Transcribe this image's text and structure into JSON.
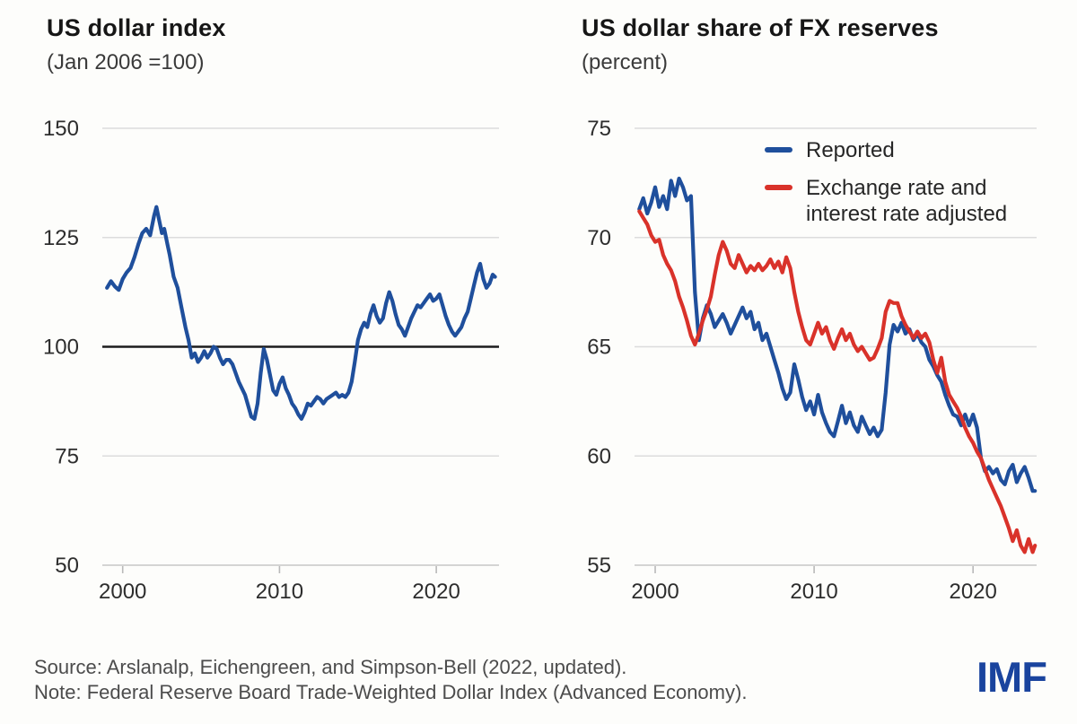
{
  "figure": {
    "source_line": "Source: Arslanalp, Eichengreen, and Simpson-Bell (2022, updated).",
    "note_line": "Note: Federal Reserve Board Trade-Weighted Dollar Index (Advanced Economy).",
    "logo_text": "IMF",
    "logo_color": "#1a449e",
    "background_color": "#fdfdfb",
    "grid_color": "#dcdcdc",
    "axis_color": "#c6c6c6",
    "reference_line_color": "#1c1c1c"
  },
  "chart_data": [
    {
      "type": "line",
      "title": "US dollar index",
      "subtitle": "(Jan 2006 =100)",
      "xlim": [
        1998.7,
        2024.0
      ],
      "ylim": [
        50,
        150
      ],
      "x_ticks": [
        2000,
        2010,
        2020
      ],
      "y_ticks": [
        150,
        125,
        100,
        75,
        50
      ],
      "reference_line": 100,
      "grid": "horizontal",
      "legend_position": "none",
      "series": [
        {
          "name": "US dollar index",
          "color": "#1f4f9c",
          "x": [
            1999.0,
            1999.25,
            1999.5,
            1999.75,
            2000.0,
            2000.25,
            2000.5,
            2000.75,
            2001.0,
            2001.25,
            2001.5,
            2001.75,
            2002.0,
            2002.15,
            2002.35,
            2002.5,
            2002.65,
            2002.85,
            2003.0,
            2003.25,
            2003.5,
            2003.75,
            2004.0,
            2004.2,
            2004.4,
            2004.6,
            2004.8,
            2005.0,
            2005.2,
            2005.4,
            2005.6,
            2005.8,
            2006.0,
            2006.2,
            2006.4,
            2006.6,
            2006.8,
            2007.0,
            2007.2,
            2007.4,
            2007.6,
            2007.8,
            2008.0,
            2008.2,
            2008.4,
            2008.6,
            2008.8,
            2009.0,
            2009.2,
            2009.4,
            2009.6,
            2009.8,
            2010.0,
            2010.2,
            2010.4,
            2010.6,
            2010.8,
            2011.0,
            2011.2,
            2011.4,
            2011.6,
            2011.8,
            2012.0,
            2012.2,
            2012.4,
            2012.6,
            2012.8,
            2013.0,
            2013.2,
            2013.4,
            2013.6,
            2013.8,
            2014.0,
            2014.2,
            2014.4,
            2014.6,
            2014.8,
            2015.0,
            2015.2,
            2015.4,
            2015.6,
            2015.8,
            2016.0,
            2016.2,
            2016.4,
            2016.6,
            2016.8,
            2017.0,
            2017.2,
            2017.4,
            2017.6,
            2017.8,
            2018.0,
            2018.2,
            2018.4,
            2018.6,
            2018.8,
            2019.0,
            2019.2,
            2019.4,
            2019.6,
            2019.8,
            2020.0,
            2020.2,
            2020.4,
            2020.6,
            2020.8,
            2021.0,
            2021.2,
            2021.4,
            2021.6,
            2021.8,
            2022.0,
            2022.2,
            2022.4,
            2022.6,
            2022.8,
            2023.0,
            2023.2,
            2023.4,
            2023.6,
            2023.75
          ],
          "y": [
            113.5,
            115.0,
            113.8,
            113.0,
            115.5,
            117.0,
            118.0,
            120.5,
            123.5,
            126.0,
            127.0,
            125.5,
            130.0,
            132.0,
            128.5,
            126.0,
            127.0,
            123.5,
            121.0,
            116.0,
            113.5,
            109.0,
            104.5,
            101.5,
            97.5,
            98.5,
            96.5,
            97.5,
            99.0,
            97.5,
            98.5,
            100.0,
            99.5,
            97.5,
            96.0,
            97.0,
            97.0,
            96.0,
            94.0,
            92.0,
            90.5,
            89.0,
            86.5,
            84.0,
            83.5,
            87.0,
            94.0,
            99.5,
            97.0,
            93.5,
            90.0,
            89.0,
            91.5,
            93.0,
            90.5,
            89.0,
            87.0,
            86.0,
            84.5,
            83.5,
            85.0,
            87.0,
            86.5,
            87.5,
            88.5,
            88.0,
            87.0,
            88.0,
            88.5,
            89.0,
            89.5,
            88.5,
            89.0,
            88.5,
            89.5,
            92.0,
            96.5,
            101.5,
            104.0,
            105.5,
            104.5,
            107.5,
            109.5,
            107.0,
            105.5,
            106.5,
            110.0,
            112.5,
            110.5,
            107.5,
            105.0,
            104.0,
            102.5,
            104.5,
            106.5,
            108.0,
            109.5,
            109.0,
            110.0,
            111.0,
            112.0,
            110.5,
            111.0,
            112.0,
            109.5,
            107.0,
            105.0,
            103.5,
            102.5,
            103.5,
            104.5,
            106.5,
            108.0,
            111.0,
            114.0,
            117.0,
            119.0,
            115.5,
            113.5,
            114.5,
            116.5,
            116.0
          ]
        }
      ]
    },
    {
      "type": "line",
      "title": "US dollar share of FX reserves",
      "subtitle": "(percent)",
      "xlim": [
        1998.7,
        2024.0
      ],
      "ylim": [
        55,
        75
      ],
      "x_ticks": [
        2000,
        2010,
        2020
      ],
      "y_ticks": [
        75,
        70,
        65,
        60,
        55
      ],
      "grid": "horizontal",
      "legend_position": "top-right",
      "series": [
        {
          "name": "Reported",
          "color": "#1f4f9c",
          "x": [
            1999.0,
            1999.25,
            1999.5,
            1999.75,
            2000.0,
            2000.25,
            2000.5,
            2000.75,
            2001.0,
            2001.25,
            2001.5,
            2001.75,
            2002.0,
            2002.25,
            2002.5,
            2002.75,
            2003.0,
            2003.25,
            2003.5,
            2003.75,
            2004.0,
            2004.25,
            2004.5,
            2004.75,
            2005.0,
            2005.25,
            2005.5,
            2005.75,
            2006.0,
            2006.25,
            2006.5,
            2006.75,
            2007.0,
            2007.25,
            2007.5,
            2007.75,
            2008.0,
            2008.25,
            2008.5,
            2008.75,
            2009.0,
            2009.25,
            2009.5,
            2009.75,
            2010.0,
            2010.25,
            2010.5,
            2010.75,
            2011.0,
            2011.25,
            2011.5,
            2011.75,
            2012.0,
            2012.25,
            2012.5,
            2012.75,
            2013.0,
            2013.25,
            2013.5,
            2013.75,
            2014.0,
            2014.25,
            2014.5,
            2014.75,
            2015.0,
            2015.25,
            2015.5,
            2015.75,
            2016.0,
            2016.25,
            2016.5,
            2016.75,
            2017.0,
            2017.25,
            2017.5,
            2017.75,
            2018.0,
            2018.25,
            2018.5,
            2018.75,
            2019.0,
            2019.25,
            2019.5,
            2019.75,
            2020.0,
            2020.25,
            2020.5,
            2020.75,
            2021.0,
            2021.25,
            2021.5,
            2021.75,
            2022.0,
            2022.25,
            2022.5,
            2022.75,
            2023.0,
            2023.25,
            2023.5,
            2023.75,
            2023.9
          ],
          "y": [
            71.3,
            71.8,
            71.1,
            71.6,
            72.3,
            71.4,
            71.9,
            71.3,
            72.6,
            71.9,
            72.7,
            72.3,
            71.7,
            71.9,
            67.5,
            65.3,
            66.3,
            66.9,
            66.5,
            65.9,
            66.2,
            66.5,
            66.1,
            65.6,
            66.0,
            66.4,
            66.8,
            66.3,
            66.6,
            65.8,
            66.1,
            65.3,
            65.6,
            65.0,
            64.4,
            63.8,
            63.1,
            62.6,
            62.9,
            64.2,
            63.5,
            62.7,
            62.1,
            62.5,
            61.9,
            62.8,
            62.0,
            61.5,
            61.1,
            60.9,
            61.6,
            62.3,
            61.5,
            62.0,
            61.4,
            61.1,
            61.8,
            61.4,
            61.0,
            61.3,
            60.9,
            61.2,
            62.9,
            65.1,
            66.0,
            65.7,
            66.1,
            65.6,
            65.8,
            65.3,
            65.6,
            65.2,
            65.0,
            64.4,
            64.1,
            63.7,
            63.4,
            62.8,
            62.3,
            61.9,
            61.8,
            61.4,
            61.9,
            61.4,
            61.9,
            61.3,
            59.9,
            59.3,
            59.5,
            59.2,
            59.4,
            58.9,
            58.7,
            59.3,
            59.6,
            58.8,
            59.2,
            59.5,
            59.0,
            58.4,
            58.4
          ]
        },
        {
          "name": "Exchange rate and interest rate adjusted",
          "color": "#d9322a",
          "x": [
            1999.0,
            1999.25,
            1999.5,
            1999.75,
            2000.0,
            2000.25,
            2000.5,
            2000.75,
            2001.0,
            2001.25,
            2001.5,
            2001.75,
            2002.0,
            2002.25,
            2002.5,
            2002.75,
            2003.0,
            2003.25,
            2003.5,
            2003.75,
            2004.0,
            2004.25,
            2004.5,
            2004.75,
            2005.0,
            2005.25,
            2005.5,
            2005.75,
            2006.0,
            2006.25,
            2006.5,
            2006.75,
            2007.0,
            2007.25,
            2007.5,
            2007.75,
            2008.0,
            2008.25,
            2008.5,
            2008.75,
            2009.0,
            2009.25,
            2009.5,
            2009.75,
            2010.0,
            2010.25,
            2010.5,
            2010.75,
            2011.0,
            2011.25,
            2011.5,
            2011.75,
            2012.0,
            2012.25,
            2012.5,
            2012.75,
            2013.0,
            2013.25,
            2013.5,
            2013.75,
            2014.0,
            2014.25,
            2014.5,
            2014.75,
            2015.0,
            2015.25,
            2015.5,
            2015.75,
            2016.0,
            2016.25,
            2016.5,
            2016.75,
            2017.0,
            2017.25,
            2017.5,
            2017.75,
            2018.0,
            2018.25,
            2018.5,
            2018.75,
            2019.0,
            2019.25,
            2019.5,
            2019.75,
            2020.0,
            2020.25,
            2020.5,
            2020.75,
            2021.0,
            2021.25,
            2021.5,
            2021.75,
            2022.0,
            2022.25,
            2022.5,
            2022.75,
            2023.0,
            2023.25,
            2023.5,
            2023.75,
            2023.9
          ],
          "y": [
            71.2,
            70.9,
            70.6,
            70.1,
            69.8,
            69.9,
            69.2,
            68.8,
            68.5,
            68.0,
            67.3,
            66.8,
            66.2,
            65.5,
            65.1,
            65.6,
            66.2,
            66.7,
            67.3,
            68.3,
            69.2,
            69.8,
            69.4,
            68.8,
            68.6,
            69.2,
            68.8,
            68.4,
            68.7,
            68.5,
            68.8,
            68.5,
            68.7,
            69.0,
            68.6,
            68.9,
            68.4,
            69.1,
            68.6,
            67.5,
            66.6,
            65.9,
            65.3,
            65.1,
            65.6,
            66.1,
            65.6,
            65.9,
            65.3,
            64.9,
            65.4,
            65.8,
            65.3,
            65.6,
            65.1,
            64.8,
            65.0,
            64.7,
            64.4,
            64.5,
            64.9,
            65.4,
            66.6,
            67.1,
            67.0,
            67.0,
            66.4,
            66.0,
            65.7,
            65.4,
            65.7,
            65.4,
            65.6,
            65.2,
            64.4,
            63.8,
            64.5,
            63.4,
            62.8,
            62.5,
            62.2,
            61.8,
            61.3,
            60.9,
            60.6,
            60.2,
            59.9,
            59.4,
            58.9,
            58.5,
            58.1,
            57.7,
            57.2,
            56.7,
            56.1,
            56.6,
            55.9,
            55.6,
            56.2,
            55.6,
            55.9
          ]
        }
      ]
    }
  ]
}
